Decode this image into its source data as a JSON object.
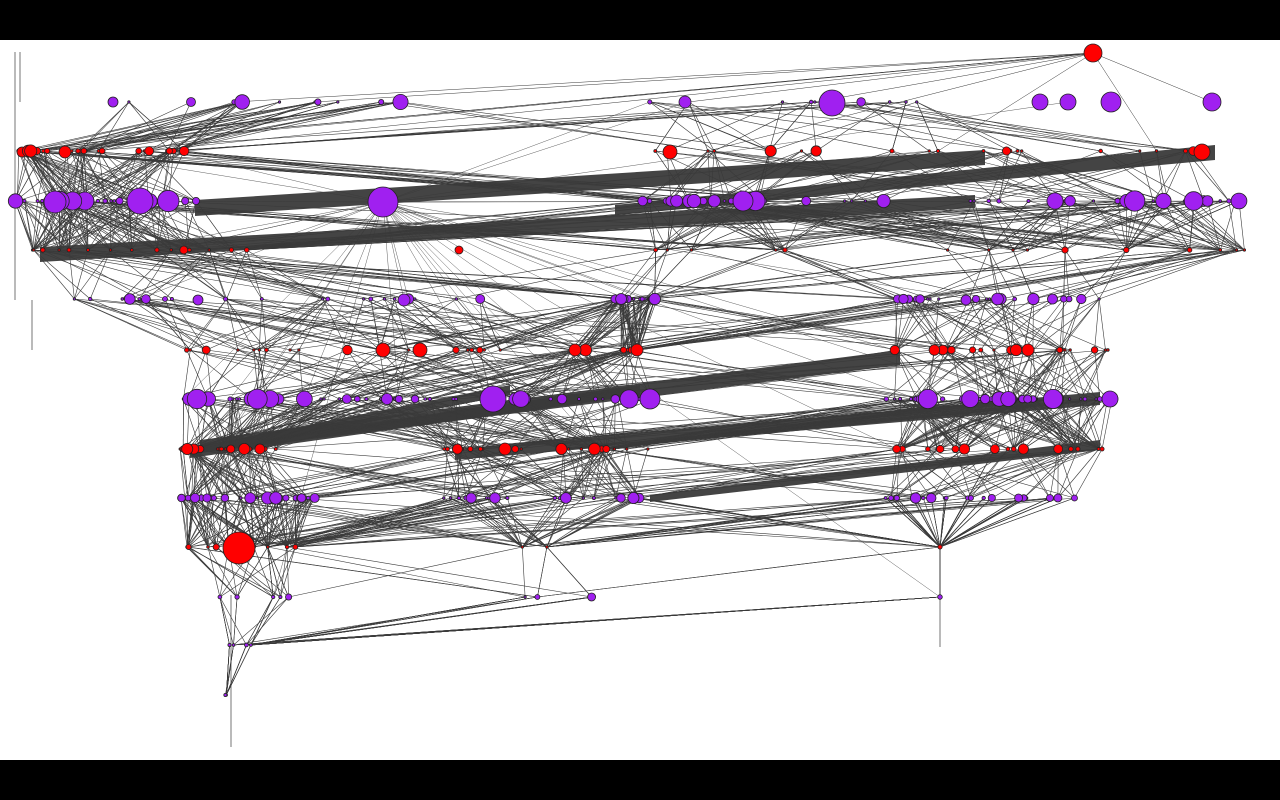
{
  "view": {
    "type": "network-graph",
    "layout": "layered-hierarchical",
    "background": "#ffffff",
    "letterbox_color": "#000000",
    "node_stroke": "#222222"
  },
  "colors": {
    "purple_node": "#a020f0",
    "red_node": "#ff0000",
    "edge": "#3a3a3a"
  },
  "legend": null,
  "text_labels": []
}
